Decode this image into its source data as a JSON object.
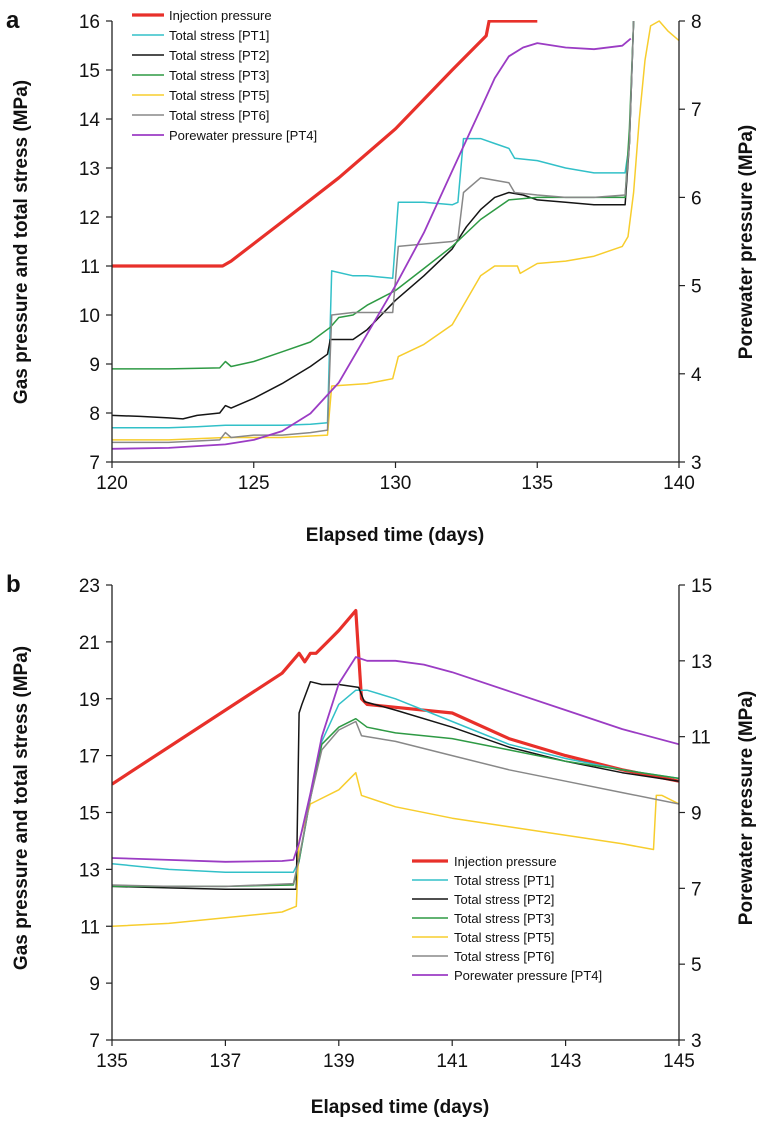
{
  "chart_data": [
    {
      "panel_label": "a",
      "type": "line",
      "xlabel": "Elapsed time (days)",
      "ylabel": "Gas pressure and total stress (MPa)",
      "y2label": "Porewater pressure (MPa)",
      "xlim": [
        120,
        140
      ],
      "ylim": [
        7,
        16
      ],
      "y2lim": [
        3,
        8
      ],
      "xticks": [
        120,
        125,
        130,
        135,
        140
      ],
      "yticks": [
        7,
        8,
        9,
        10,
        11,
        12,
        13,
        14,
        15,
        16
      ],
      "y2ticks": [
        3,
        4,
        5,
        6,
        7,
        8
      ],
      "legend_position": "top-left",
      "series": [
        {
          "name": "Injection pressure",
          "color": "#e8302a",
          "width": 3.2,
          "axis": "left",
          "x": [
            120,
            123.9,
            124.2,
            126,
            128,
            130,
            132,
            133.2,
            133.3,
            135
          ],
          "y": [
            11,
            11,
            11.1,
            11.9,
            12.8,
            13.8,
            15.0,
            15.7,
            16.0,
            16.0
          ]
        },
        {
          "name": "Total stress [PT1]",
          "color": "#32c0c8",
          "width": 1.5,
          "axis": "left",
          "x": [
            120,
            121,
            122,
            123,
            124,
            125,
            126,
            127,
            127.6,
            127.75,
            128.5,
            129,
            129.9,
            130.1,
            131,
            132,
            132.2,
            132.4,
            133,
            133.5,
            134,
            134.2,
            135,
            136,
            137,
            138.1,
            138.25,
            138.4
          ],
          "y": [
            7.7,
            7.7,
            7.7,
            7.72,
            7.75,
            7.75,
            7.75,
            7.77,
            7.8,
            10.9,
            10.8,
            10.8,
            10.75,
            12.3,
            12.3,
            12.25,
            12.3,
            13.6,
            13.6,
            13.5,
            13.4,
            13.2,
            13.15,
            13.0,
            12.9,
            12.9,
            13.5,
            16.0
          ]
        },
        {
          "name": "Total stress [PT2]",
          "color": "#151515",
          "width": 1.5,
          "axis": "left",
          "x": [
            120,
            121,
            122,
            122.5,
            123,
            123.8,
            124,
            124.2,
            125,
            126,
            127,
            127.6,
            127.7,
            128.5,
            129,
            130,
            131,
            132,
            132.5,
            133,
            133.5,
            134,
            134.5,
            135,
            136,
            137,
            138.1,
            138.25,
            138.4
          ],
          "y": [
            7.95,
            7.93,
            7.9,
            7.88,
            7.95,
            8.0,
            8.15,
            8.1,
            8.3,
            8.6,
            8.95,
            9.2,
            9.5,
            9.5,
            9.7,
            10.3,
            10.8,
            11.35,
            11.8,
            12.15,
            12.4,
            12.5,
            12.45,
            12.35,
            12.3,
            12.25,
            12.25,
            13.5,
            16.0
          ]
        },
        {
          "name": "Total stress [PT3]",
          "color": "#2e9a44",
          "width": 1.5,
          "axis": "left",
          "x": [
            120,
            122,
            123.8,
            124,
            124.2,
            125,
            126,
            127,
            127.7,
            128,
            128.5,
            129,
            130,
            131,
            132,
            133,
            134,
            135,
            136,
            137,
            138.1,
            138.25,
            138.4
          ],
          "y": [
            8.9,
            8.9,
            8.92,
            9.05,
            8.95,
            9.05,
            9.25,
            9.45,
            9.75,
            9.95,
            10.0,
            10.2,
            10.5,
            10.95,
            11.4,
            11.95,
            12.35,
            12.4,
            12.4,
            12.4,
            12.4,
            13.8,
            16.0
          ]
        },
        {
          "name": "Total stress [PT5]",
          "color": "#f7cd2d",
          "width": 1.5,
          "axis": "left",
          "x": [
            120,
            122,
            124,
            126,
            127.6,
            127.75,
            129,
            129.9,
            130.1,
            131,
            132,
            132.5,
            133,
            133.5,
            134,
            134.3,
            134.4,
            135,
            136,
            137,
            137.5,
            138,
            138.2,
            138.4,
            138.6,
            138.8,
            139,
            139.3,
            139.6,
            140
          ],
          "y": [
            7.45,
            7.45,
            7.5,
            7.5,
            7.55,
            8.55,
            8.6,
            8.7,
            9.15,
            9.4,
            9.8,
            10.3,
            10.8,
            11.0,
            11.0,
            11.0,
            10.85,
            11.05,
            11.1,
            11.2,
            11.3,
            11.4,
            11.6,
            12.5,
            14.0,
            15.2,
            15.9,
            16.0,
            15.8,
            15.6
          ]
        },
        {
          "name": "Total stress [PT6]",
          "color": "#888888",
          "width": 1.5,
          "axis": "left",
          "x": [
            120,
            122,
            123.8,
            124,
            124.2,
            125,
            126,
            127,
            127.6,
            127.75,
            128.5,
            129,
            129.9,
            130.1,
            131,
            132,
            132.2,
            132.4,
            133,
            133.5,
            134,
            134.2,
            135,
            136,
            137,
            138.1,
            138.25,
            138.4
          ],
          "y": [
            7.4,
            7.4,
            7.45,
            7.6,
            7.5,
            7.55,
            7.55,
            7.6,
            7.65,
            10.0,
            10.05,
            10.05,
            10.05,
            11.4,
            11.45,
            11.5,
            11.55,
            12.5,
            12.8,
            12.75,
            12.7,
            12.5,
            12.45,
            12.4,
            12.4,
            12.45,
            13.5,
            16.0
          ]
        },
        {
          "name": "Porewater pressure [PT4]",
          "color": "#9b3cc4",
          "width": 1.8,
          "axis": "right",
          "x": [
            120,
            122,
            124,
            125,
            126,
            127,
            128,
            129,
            130,
            131,
            132,
            133,
            133.5,
            134,
            134.5,
            135,
            136,
            137,
            138,
            138.3
          ],
          "y": [
            3.15,
            3.16,
            3.2,
            3.25,
            3.35,
            3.55,
            3.9,
            4.45,
            5.0,
            5.6,
            6.3,
            7.0,
            7.35,
            7.6,
            7.7,
            7.75,
            7.7,
            7.68,
            7.72,
            7.8
          ]
        }
      ]
    },
    {
      "panel_label": "b",
      "type": "line",
      "xlabel": "Elapsed time (days)",
      "ylabel": "Gas pressure and total stress (MPa)",
      "y2label": "Porewater pressure (MPa)",
      "xlim": [
        135,
        145
      ],
      "ylim": [
        7,
        23
      ],
      "y2lim": [
        3,
        15
      ],
      "xticks": [
        135,
        137,
        139,
        141,
        143,
        145
      ],
      "yticks": [
        7,
        9,
        11,
        13,
        15,
        17,
        19,
        21,
        23
      ],
      "y2ticks": [
        3,
        5,
        7,
        9,
        11,
        13,
        15
      ],
      "legend_position": "bottom-right",
      "series": [
        {
          "name": "Injection pressure",
          "color": "#e8302a",
          "width": 3.2,
          "axis": "left",
          "x": [
            135,
            136,
            137,
            138,
            138.3,
            138.4,
            138.5,
            138.6,
            138.8,
            139,
            139.3,
            139.4,
            139.5,
            140,
            141,
            142,
            143,
            144,
            145
          ],
          "y": [
            16.0,
            17.3,
            18.6,
            19.9,
            20.6,
            20.3,
            20.6,
            20.6,
            21.0,
            21.4,
            22.1,
            19.0,
            18.8,
            18.7,
            18.5,
            17.6,
            17.0,
            16.5,
            16.1
          ]
        },
        {
          "name": "Total stress [PT1]",
          "color": "#32c0c8",
          "width": 1.5,
          "axis": "left",
          "x": [
            135,
            136,
            137,
            138.2,
            138.3,
            138.5,
            138.7,
            139,
            139.3,
            139.5,
            140,
            141,
            142,
            143,
            144,
            145
          ],
          "y": [
            13.2,
            13.0,
            12.9,
            12.9,
            13.3,
            15.5,
            17.5,
            18.8,
            19.3,
            19.3,
            19.0,
            18.2,
            17.4,
            16.9,
            16.5,
            16.2
          ]
        },
        {
          "name": "Total stress [PT2]",
          "color": "#151515",
          "width": 1.5,
          "axis": "left",
          "x": [
            135,
            136,
            137,
            138.25,
            138.3,
            138.35,
            138.5,
            138.7,
            139,
            139.35,
            139.45,
            140,
            141,
            142,
            143,
            144,
            145
          ],
          "y": [
            12.4,
            12.35,
            12.3,
            12.3,
            18.5,
            18.8,
            19.6,
            19.5,
            19.5,
            19.4,
            18.9,
            18.6,
            18.0,
            17.3,
            16.8,
            16.4,
            16.1
          ]
        },
        {
          "name": "Total stress [PT3]",
          "color": "#2e9a44",
          "width": 1.5,
          "axis": "left",
          "x": [
            135,
            136,
            137,
            138.2,
            138.3,
            138.5,
            138.7,
            139,
            139.3,
            139.5,
            140,
            141,
            142,
            143,
            144,
            145
          ],
          "y": [
            12.4,
            12.4,
            12.4,
            12.45,
            13.3,
            15.5,
            17.4,
            18.0,
            18.3,
            18.0,
            17.8,
            17.6,
            17.2,
            16.8,
            16.5,
            16.2
          ]
        },
        {
          "name": "Total stress [PT5]",
          "color": "#f7cd2d",
          "width": 1.5,
          "axis": "left",
          "x": [
            135,
            136,
            137,
            138,
            138.25,
            138.3,
            138.5,
            139,
            139.3,
            139.4,
            140,
            141,
            142,
            143,
            144,
            144.55,
            144.6,
            144.7,
            145
          ],
          "y": [
            11.0,
            11.1,
            11.3,
            11.5,
            11.7,
            14.0,
            15.3,
            15.8,
            16.4,
            15.6,
            15.2,
            14.8,
            14.5,
            14.2,
            13.9,
            13.7,
            15.6,
            15.6,
            15.3
          ]
        },
        {
          "name": "Total stress [PT6]",
          "color": "#888888",
          "width": 1.5,
          "axis": "left",
          "x": [
            135,
            136,
            137,
            138.2,
            138.3,
            138.5,
            138.7,
            139,
            139.3,
            139.4,
            140,
            141,
            142,
            143,
            144,
            145
          ],
          "y": [
            12.45,
            12.4,
            12.4,
            12.5,
            13.4,
            15.5,
            17.2,
            17.9,
            18.2,
            17.7,
            17.5,
            17.0,
            16.5,
            16.1,
            15.7,
            15.3
          ]
        },
        {
          "name": "Porewater pressure [PT4]",
          "color": "#9b3cc4",
          "width": 1.8,
          "axis": "right",
          "x": [
            135,
            136,
            137,
            138,
            138.2,
            138.3,
            138.5,
            138.7,
            139,
            139.3,
            139.5,
            140,
            140.5,
            141,
            142,
            143,
            144,
            145
          ],
          "y": [
            7.8,
            7.75,
            7.7,
            7.72,
            7.75,
            8.2,
            9.5,
            11.0,
            12.4,
            13.1,
            13.0,
            13.0,
            12.9,
            12.7,
            12.2,
            11.7,
            11.2,
            10.8
          ]
        }
      ]
    }
  ]
}
